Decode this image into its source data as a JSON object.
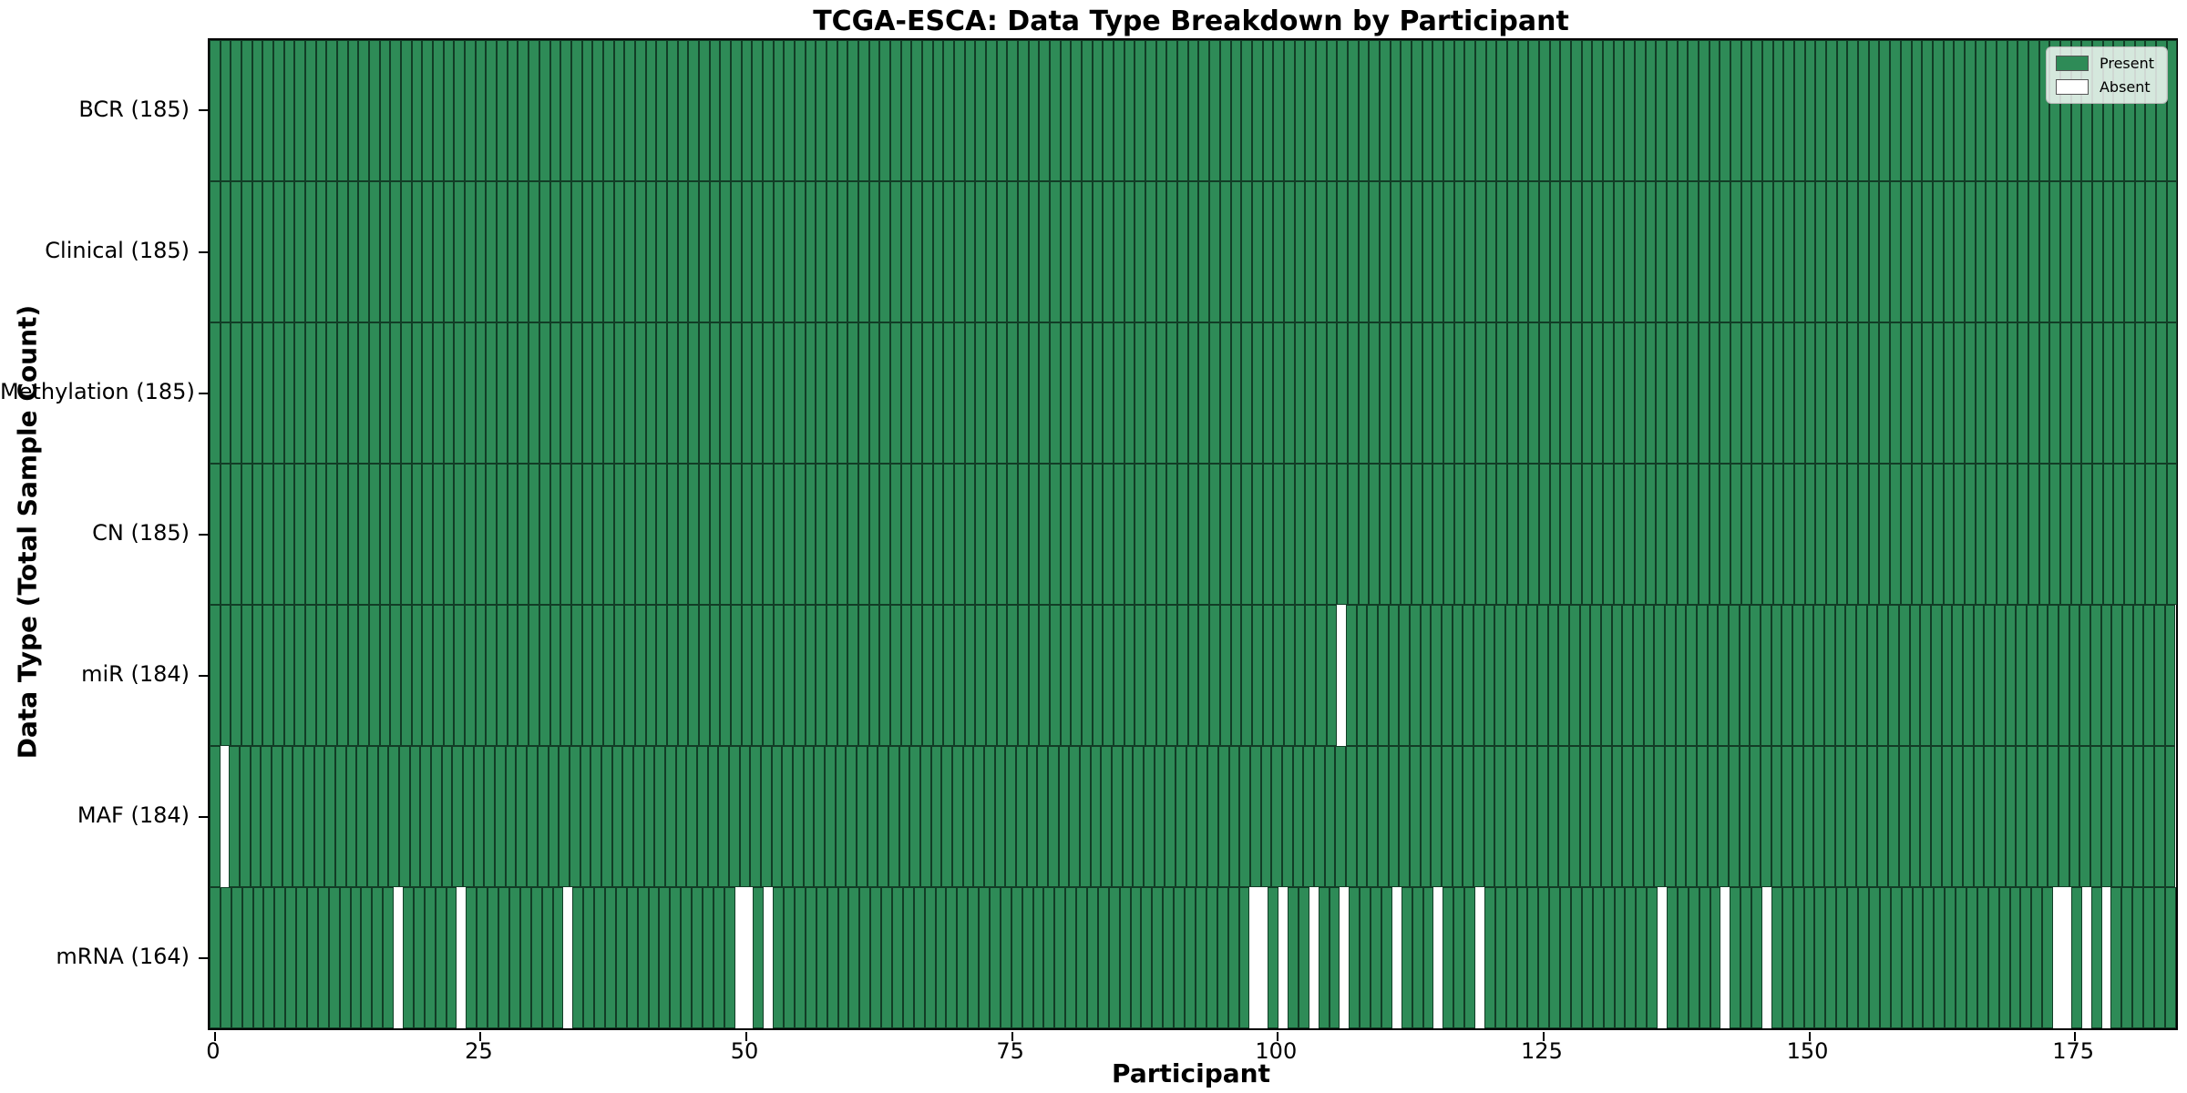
{
  "chart_data": {
    "type": "heatmap",
    "title": "TCGA-ESCA: Data Type Breakdown by Participant",
    "xlabel": "Participant",
    "ylabel": "Data Type (Total Sample Count)",
    "n_participants": 185,
    "x_ticks": [
      0,
      25,
      50,
      75,
      100,
      125,
      150,
      175
    ],
    "rows": [
      {
        "label": "BCR (185)",
        "data_type": "BCR",
        "present_count": 185,
        "absent_participants": []
      },
      {
        "label": "Clinical (185)",
        "data_type": "Clinical",
        "present_count": 185,
        "absent_participants": []
      },
      {
        "label": "Methylation (185)",
        "data_type": "Methylation",
        "present_count": 185,
        "absent_participants": []
      },
      {
        "label": "CN (185)",
        "data_type": "CN",
        "present_count": 185,
        "absent_participants": []
      },
      {
        "label": "miR (184)",
        "data_type": "miR",
        "present_count": 184,
        "absent_participants": [
          106
        ]
      },
      {
        "label": "MAF (184)",
        "data_type": "MAF",
        "present_count": 184,
        "absent_participants": [
          1
        ]
      },
      {
        "label": "mRNA (164)",
        "data_type": "mRNA",
        "present_count": 164,
        "absent_participants": [
          17,
          23,
          33,
          49,
          50,
          52,
          97,
          98,
          100,
          103,
          106,
          111,
          115,
          119,
          136,
          142,
          146,
          173,
          174,
          176,
          178
        ]
      }
    ],
    "legend": [
      {
        "label": "Present",
        "color": "#2e8b57"
      },
      {
        "label": "Absent",
        "color": "#ffffff"
      }
    ],
    "colors": {
      "present": "#2e8b57",
      "absent": "#ffffff",
      "edge": "rgba(10,35,22,0.75)",
      "spine": "#000000"
    },
    "legend_position": "upper right",
    "grid": false
  }
}
